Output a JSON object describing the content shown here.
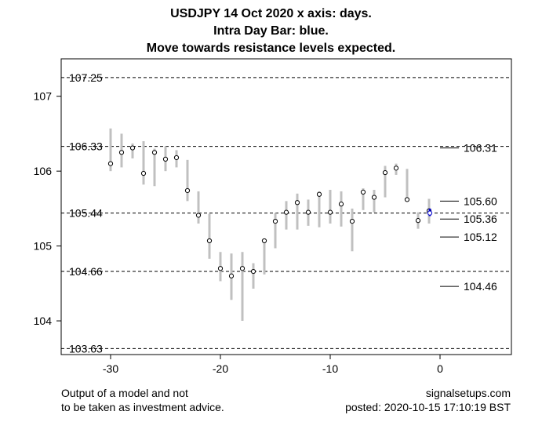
{
  "title": {
    "line1": "USDJPY 14 Oct 2020 x axis: days.",
    "line2": "Intra Day Bar: blue.",
    "line3": "Move towards resistance levels expected."
  },
  "footer": {
    "left_line1": "Output of a model and not",
    "left_line2": "to be taken as investment advice.",
    "right_line1": "signalsetups.com",
    "right_line2": "posted: 2020-10-15 17:10:19 BST"
  },
  "chart_data": {
    "type": "range-bar",
    "xlim": [
      -34.5,
      6.5
    ],
    "ylim": [
      103.55,
      107.5
    ],
    "x_ticks": [
      -30,
      -20,
      -10,
      0
    ],
    "y_ticks": [
      104,
      105,
      106,
      107
    ],
    "grid": false,
    "colors": {
      "bars": "#c0c0c0",
      "intraday": "#0000cc",
      "lines": "#000000"
    },
    "resistance_levels": [
      {
        "value": 107.25,
        "label": "107.25"
      },
      {
        "value": 106.33,
        "label": "106.33"
      },
      {
        "value": 105.44,
        "label": "105.44"
      },
      {
        "value": 104.66,
        "label": "104.66"
      },
      {
        "value": 103.63,
        "label": "103.63"
      }
    ],
    "target_levels": [
      {
        "value": 106.31,
        "label": "106.31"
      },
      {
        "value": 105.6,
        "label": "105.60"
      },
      {
        "value": 105.36,
        "label": "105.36"
      },
      {
        "value": 105.12,
        "label": "105.12"
      },
      {
        "value": 104.46,
        "label": "104.46"
      }
    ],
    "bars": [
      {
        "x": -30,
        "high": 106.57,
        "low": 106.0,
        "close": 106.1
      },
      {
        "x": -29,
        "high": 106.5,
        "low": 106.05,
        "close": 106.25
      },
      {
        "x": -28,
        "high": 106.37,
        "low": 106.17,
        "close": 106.31
      },
      {
        "x": -27,
        "high": 106.4,
        "low": 105.82,
        "close": 105.97
      },
      {
        "x": -26,
        "high": 106.3,
        "low": 105.8,
        "close": 106.25
      },
      {
        "x": -25,
        "high": 106.33,
        "low": 106.0,
        "close": 106.16
      },
      {
        "x": -24,
        "high": 106.28,
        "low": 106.05,
        "close": 106.18
      },
      {
        "x": -23,
        "high": 106.15,
        "low": 105.6,
        "close": 105.74
      },
      {
        "x": -22,
        "high": 105.73,
        "low": 105.3,
        "close": 105.41
      },
      {
        "x": -21,
        "high": 105.43,
        "low": 104.83,
        "close": 105.07
      },
      {
        "x": -20,
        "high": 104.92,
        "low": 104.53,
        "close": 104.7
      },
      {
        "x": -19,
        "high": 104.9,
        "low": 104.28,
        "close": 104.6
      },
      {
        "x": -18,
        "high": 104.92,
        "low": 104.0,
        "close": 104.7
      },
      {
        "x": -17,
        "high": 104.77,
        "low": 104.43,
        "close": 104.66
      },
      {
        "x": -16,
        "high": 105.1,
        "low": 104.62,
        "close": 105.07
      },
      {
        "x": -15,
        "high": 105.44,
        "low": 104.97,
        "close": 105.33
      },
      {
        "x": -14,
        "high": 105.6,
        "low": 105.22,
        "close": 105.45
      },
      {
        "x": -13,
        "high": 105.7,
        "low": 105.22,
        "close": 105.58
      },
      {
        "x": -12,
        "high": 105.62,
        "low": 105.27,
        "close": 105.45
      },
      {
        "x": -11,
        "high": 105.73,
        "low": 105.25,
        "close": 105.69
      },
      {
        "x": -10,
        "high": 105.75,
        "low": 105.3,
        "close": 105.45
      },
      {
        "x": -9,
        "high": 105.73,
        "low": 105.26,
        "close": 105.56
      },
      {
        "x": -8,
        "high": 105.5,
        "low": 104.93,
        "close": 105.33
      },
      {
        "x": -7,
        "high": 105.77,
        "low": 105.48,
        "close": 105.72
      },
      {
        "x": -6,
        "high": 105.75,
        "low": 105.45,
        "close": 105.65
      },
      {
        "x": -5,
        "high": 106.07,
        "low": 105.65,
        "close": 105.98
      },
      {
        "x": -4,
        "high": 106.1,
        "low": 105.95,
        "close": 106.04
      },
      {
        "x": -3,
        "high": 106.03,
        "low": 105.6,
        "close": 105.62
      },
      {
        "x": -2,
        "high": 105.45,
        "low": 105.23,
        "close": 105.34
      },
      {
        "x": -1,
        "high": 105.63,
        "low": 105.3,
        "close": 105.47
      }
    ],
    "intraday_bar": {
      "x": 0,
      "high": 105.5,
      "low": 105.4,
      "close": 105.44
    }
  }
}
